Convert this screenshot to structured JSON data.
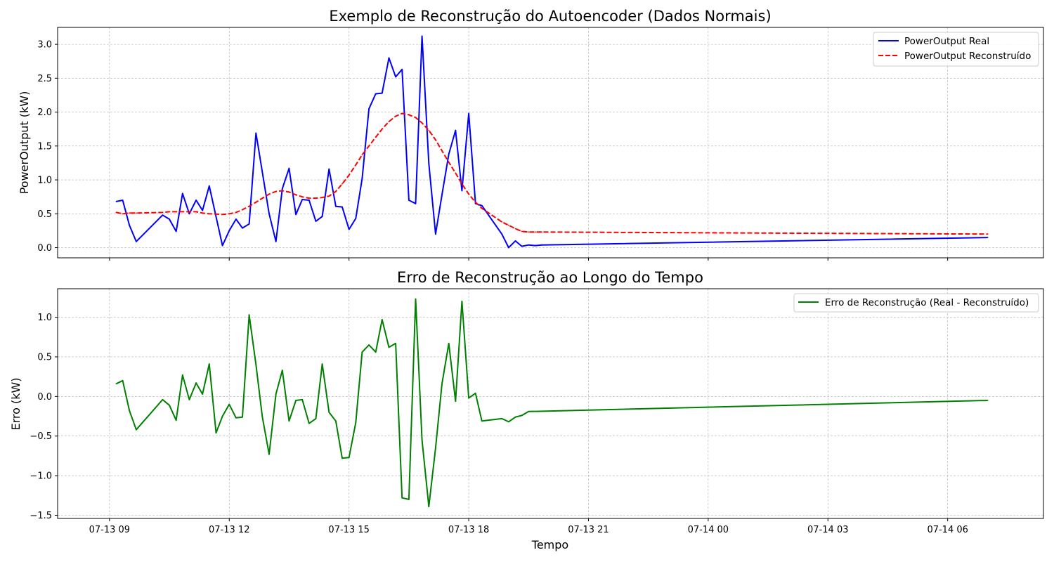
{
  "x_ticks": [
    "07-13 09",
    "07-13 12",
    "07-13 15",
    "07-13 18",
    "07-13 21",
    "07-14 00",
    "07-14 03",
    "07-14 06"
  ],
  "colors": {
    "real": "#0000ff",
    "reconstructed": "#ff0000",
    "error": "#008000",
    "grid": "#b0b0b0",
    "axis": "#000000"
  },
  "chart_data": [
    {
      "type": "line",
      "title": "Exemplo de Reconstrução do Autoencoder (Dados Normais)",
      "xlabel": "",
      "ylabel": "PowerOutput (kW)",
      "ylim": [
        -0.15,
        3.25
      ],
      "yticks": [
        "0.0",
        "0.5",
        "1.0",
        "1.5",
        "2.0",
        "2.5",
        "3.0"
      ],
      "grid": true,
      "legend": "top-right",
      "x": [
        9.17,
        9.33,
        9.5,
        9.67,
        10.33,
        10.5,
        10.67,
        10.83,
        11.0,
        11.17,
        11.33,
        11.5,
        11.83,
        12.0,
        12.17,
        12.33,
        12.5,
        12.67,
        12.83,
        13.0,
        13.17,
        13.33,
        13.5,
        13.67,
        13.83,
        14.0,
        14.17,
        14.33,
        14.5,
        14.67,
        14.83,
        15.0,
        15.17,
        15.33,
        15.5,
        15.67,
        15.83,
        16.0,
        16.17,
        16.33,
        16.5,
        16.67,
        16.83,
        17.0,
        17.17,
        17.33,
        17.5,
        17.67,
        17.83,
        18.0,
        18.17,
        18.33,
        18.83,
        19.0,
        19.17,
        19.33,
        19.5,
        19.67,
        19.83,
        31.0
      ],
      "series": [
        {
          "name": "PowerOutput Real",
          "style": "solid",
          "values": [
            0.68,
            0.7,
            0.33,
            0.09,
            0.48,
            0.42,
            0.24,
            0.8,
            0.5,
            0.7,
            0.55,
            0.91,
            0.03,
            0.25,
            0.42,
            0.29,
            0.35,
            1.69,
            1.11,
            0.5,
            0.09,
            0.87,
            1.17,
            0.49,
            0.71,
            0.7,
            0.39,
            0.46,
            1.16,
            0.61,
            0.6,
            0.27,
            0.43,
            1.02,
            2.05,
            2.27,
            2.28,
            2.8,
            2.52,
            2.63,
            0.7,
            0.65,
            3.12,
            1.24,
            0.2,
            0.78,
            1.38,
            1.73,
            0.84,
            1.98,
            0.65,
            0.62,
            0.2,
            0.0,
            0.1,
            0.02,
            0.04,
            0.03,
            0.04,
            0.15
          ]
        },
        {
          "name": "PowerOutput Reconstruído",
          "style": "dashed",
          "values": [
            0.52,
            0.5,
            0.51,
            0.51,
            0.52,
            0.53,
            0.53,
            0.53,
            0.53,
            0.53,
            0.51,
            0.5,
            0.49,
            0.5,
            0.52,
            0.56,
            0.61,
            0.67,
            0.73,
            0.79,
            0.83,
            0.84,
            0.82,
            0.78,
            0.75,
            0.73,
            0.73,
            0.74,
            0.76,
            0.83,
            0.94,
            1.07,
            1.22,
            1.37,
            1.5,
            1.63,
            1.75,
            1.86,
            1.94,
            1.98,
            1.96,
            1.92,
            1.84,
            1.73,
            1.59,
            1.43,
            1.26,
            1.1,
            0.94,
            0.79,
            0.67,
            0.58,
            0.38,
            0.33,
            0.28,
            0.24,
            0.23,
            0.23,
            0.23,
            0.2
          ]
        }
      ]
    },
    {
      "type": "line",
      "title": "Erro de Reconstrução ao Longo do Tempo",
      "xlabel": "Tempo",
      "ylabel": "Erro (kW)",
      "ylim": [
        -1.54,
        1.36
      ],
      "yticks": [
        "−1.5",
        "−1.0",
        "−0.5",
        "0.0",
        "0.5",
        "1.0"
      ],
      "grid": true,
      "legend": "top-right",
      "x": [
        9.17,
        9.33,
        9.5,
        9.67,
        10.33,
        10.5,
        10.67,
        10.83,
        11.0,
        11.17,
        11.33,
        11.5,
        11.67,
        11.83,
        12.0,
        12.17,
        12.33,
        12.5,
        12.67,
        12.83,
        13.0,
        13.17,
        13.33,
        13.5,
        13.67,
        13.83,
        14.0,
        14.17,
        14.33,
        14.5,
        14.67,
        14.83,
        15.0,
        15.17,
        15.33,
        15.5,
        15.67,
        15.83,
        16.0,
        16.17,
        16.33,
        16.5,
        16.67,
        16.83,
        17.0,
        17.17,
        17.33,
        17.5,
        17.67,
        17.83,
        18.0,
        18.17,
        18.33,
        18.83,
        19.0,
        19.17,
        19.33,
        19.5,
        31.0
      ],
      "series": [
        {
          "name": "Erro de Reconstrução (Real - Reconstruído)",
          "style": "solid",
          "values": [
            0.16,
            0.2,
            -0.18,
            -0.42,
            -0.04,
            -0.11,
            -0.3,
            0.27,
            -0.04,
            0.17,
            0.03,
            0.41,
            -0.46,
            -0.25,
            -0.1,
            -0.27,
            -0.26,
            1.03,
            0.4,
            -0.26,
            -0.73,
            0.03,
            0.33,
            -0.31,
            -0.05,
            -0.04,
            -0.34,
            -0.28,
            0.41,
            -0.2,
            -0.31,
            -0.78,
            -0.77,
            -0.33,
            0.56,
            0.65,
            0.56,
            0.97,
            0.62,
            0.67,
            -1.28,
            -1.3,
            1.23,
            -0.55,
            -1.39,
            -0.65,
            0.16,
            0.67,
            -0.06,
            1.2,
            -0.02,
            0.04,
            -0.31,
            -0.28,
            -0.32,
            -0.26,
            -0.24,
            -0.19,
            -0.05
          ]
        }
      ]
    }
  ]
}
